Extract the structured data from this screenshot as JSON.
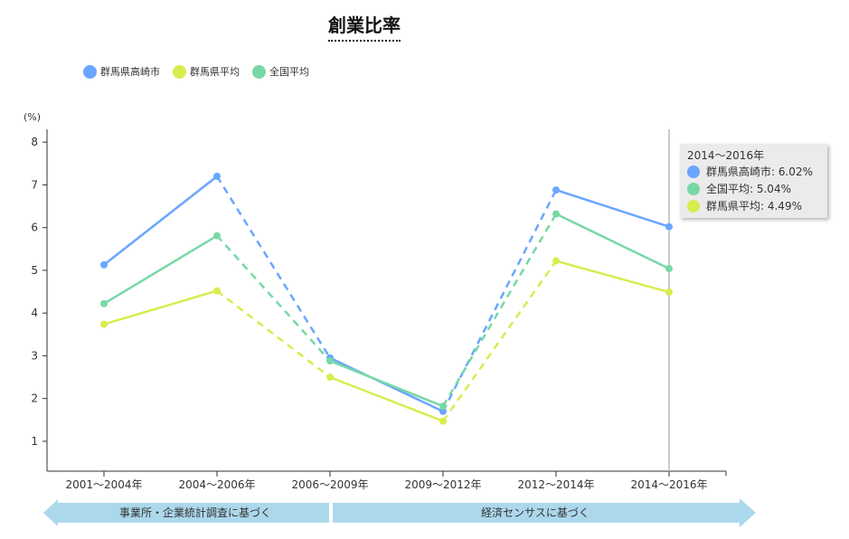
{
  "chart_data": {
    "type": "line",
    "title": "創業比率",
    "ylabel": "(%)",
    "xlabel": "",
    "ylim": [
      0.3,
      8.3
    ],
    "yticks": [
      1,
      2,
      3,
      4,
      5,
      6,
      7,
      8
    ],
    "categories": [
      "2001～2004年",
      "2004～2006年",
      "2006～2009年",
      "2009～2012年",
      "2012～2014年",
      "2014～2016年"
    ],
    "segment_styles": [
      "solid",
      "dashed",
      "solid",
      "dashed",
      "solid"
    ],
    "series": [
      {
        "name": "群馬県高崎市",
        "color": "#6aa6ff",
        "values": [
          5.13,
          7.2,
          2.95,
          1.7,
          6.88,
          6.02
        ]
      },
      {
        "name": "群馬県平均",
        "color": "#d8ec4f",
        "values": [
          3.74,
          4.52,
          2.5,
          1.47,
          5.22,
          4.49
        ]
      },
      {
        "name": "全国平均",
        "color": "#77d8a6",
        "values": [
          4.22,
          5.81,
          2.88,
          1.82,
          6.32,
          5.04
        ]
      }
    ],
    "legend_position": "top-left",
    "tooltip": {
      "title": "2014～2016年",
      "rows": [
        {
          "label": "群馬県高崎市: 6.02%",
          "color": "#6aa6ff"
        },
        {
          "label": "全国平均: 5.04%",
          "color": "#77d8a6"
        },
        {
          "label": "群馬県平均: 4.49%",
          "color": "#d8ec4f"
        }
      ]
    },
    "annotations": {
      "left_arrow": "事業所・企業統計調査に基づく",
      "right_arrow": "経済センサスに基づく",
      "arrow_color": "#acd8ec"
    }
  }
}
